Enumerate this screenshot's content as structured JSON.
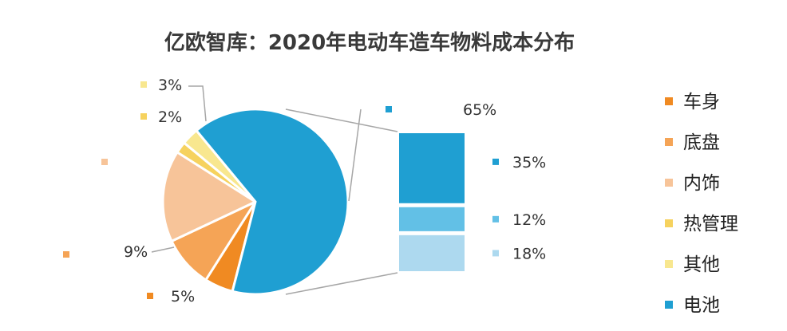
{
  "chart_data": {
    "type": "pie",
    "title": "亿欧智库：2020年电动车造车物料成本分布",
    "slices": [
      {
        "category": "车身",
        "value": 5,
        "label": "5%",
        "color": "#F08A22"
      },
      {
        "category": "底盘",
        "value": 9,
        "label": "9%",
        "color": "#F5A456"
      },
      {
        "category": "内饰",
        "value": 16,
        "label": "",
        "color": "#F7C499"
      },
      {
        "category": "热管理",
        "value": 2,
        "label": "2%",
        "color": "#F6D25E"
      },
      {
        "category": "其他",
        "value": 3,
        "label": "3%",
        "color": "#F8E78F"
      },
      {
        "category": "电池",
        "value": 65,
        "label": "65%",
        "color": "#1F9FD2"
      }
    ],
    "breakdown": {
      "of": "电池",
      "segments": [
        {
          "value": 35,
          "label": "35%",
          "color": "#1F9FD2"
        },
        {
          "value": 12,
          "label": "12%",
          "color": "#62C0E6"
        },
        {
          "value": 18,
          "label": "18%",
          "color": "#ADD9EF"
        }
      ]
    },
    "legend": {
      "position": "right",
      "items": [
        {
          "name": "车身",
          "color": "#F08A22"
        },
        {
          "name": "底盘",
          "color": "#F5A456"
        },
        {
          "name": "内饰",
          "color": "#F7C499"
        },
        {
          "name": "热管理",
          "color": "#F6D25E"
        },
        {
          "name": "其他",
          "color": "#F8E78F"
        },
        {
          "name": "电池",
          "color": "#1F9FD2"
        }
      ]
    }
  }
}
